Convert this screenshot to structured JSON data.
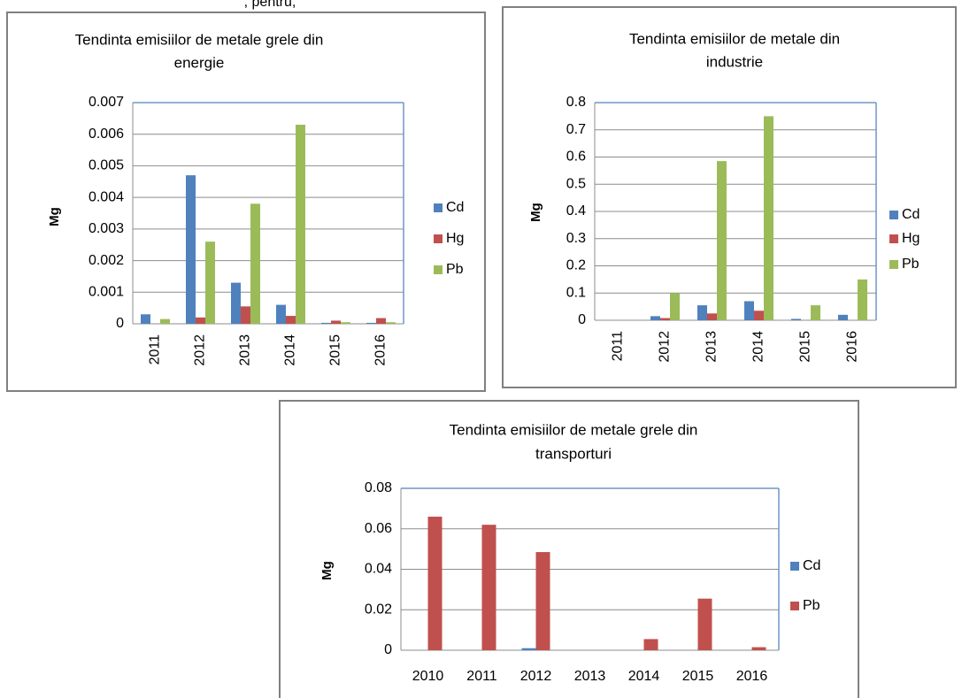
{
  "header_text": ", pentru,",
  "chart_data": [
    {
      "type": "bar",
      "title": [
        "Tendinta emisiilor de metale grele din",
        "energie"
      ],
      "y_label": "Mg",
      "categories": [
        "2011",
        "2012",
        "2013",
        "2014",
        "2015",
        "2016"
      ],
      "series": [
        {
          "name": "Cd",
          "color": "#4f81bd",
          "values": [
            0.0003,
            0.0047,
            0.0013,
            0.0006,
            3e-05,
            3e-05
          ]
        },
        {
          "name": "Hg",
          "color": "#c0504d",
          "values": [
            0,
            0.0002,
            0.00055,
            0.00025,
            0.0001,
            0.00018
          ]
        },
        {
          "name": "Pb",
          "color": "#9bbb59",
          "values": [
            0.00015,
            0.0026,
            0.0038,
            0.0063,
            5e-05,
            5e-05
          ]
        }
      ],
      "ylim": [
        0,
        0.007
      ],
      "yticks": [
        0,
        0.001,
        0.002,
        0.003,
        0.004,
        0.005,
        0.006,
        0.007
      ],
      "grid": true,
      "legend": "right"
    },
    {
      "type": "bar",
      "title": [
        "Tendinta emisiilor de metale din",
        "industrie"
      ],
      "y_label": "Mg",
      "categories": [
        "2011",
        "2012",
        "2013",
        "2014",
        "2015",
        "2016"
      ],
      "series": [
        {
          "name": "Cd",
          "color": "#4f81bd",
          "values": [
            0,
            0.015,
            0.055,
            0.07,
            0.005,
            0.02
          ]
        },
        {
          "name": "Hg",
          "color": "#c0504d",
          "values": [
            0,
            0.008,
            0.025,
            0.035,
            0,
            0
          ]
        },
        {
          "name": "Pb",
          "color": "#9bbb59",
          "values": [
            0,
            0.1,
            0.585,
            0.75,
            0.055,
            0.15
          ]
        }
      ],
      "ylim": [
        0,
        0.8
      ],
      "yticks": [
        0,
        0.1,
        0.2,
        0.3,
        0.4,
        0.5,
        0.6,
        0.7,
        0.8
      ],
      "grid": true,
      "legend": "right"
    },
    {
      "type": "bar",
      "title": [
        "Tendinta emisiilor de metale grele din",
        "transporturi"
      ],
      "y_label": "Mg",
      "categories": [
        "2010",
        "2011",
        "2012",
        "2013",
        "2014",
        "2015",
        "2016"
      ],
      "series": [
        {
          "name": "Cd",
          "color": "#4f81bd",
          "values": [
            0,
            0,
            0.001,
            0,
            0,
            0,
            0
          ]
        },
        {
          "name": "Pb",
          "color": "#c0504d",
          "values": [
            0.066,
            0.062,
            0.0485,
            0,
            0.0055,
            0.0255,
            0.0015
          ]
        }
      ],
      "ylim": [
        0,
        0.08
      ],
      "yticks": [
        0,
        0.02,
        0.04,
        0.06,
        0.08
      ],
      "grid": true,
      "legend": "right"
    }
  ]
}
